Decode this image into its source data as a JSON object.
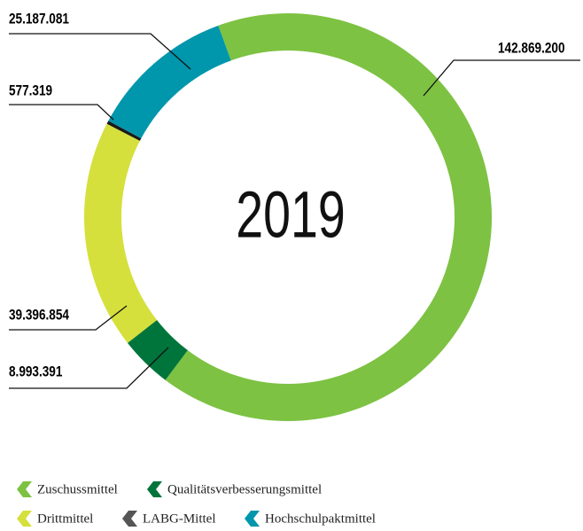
{
  "chart_data": {
    "type": "donut",
    "center_label": "2019",
    "categories": [
      "Zuschussmittel",
      "Qualitätsverbesserungsmittel",
      "Drittmittel",
      "LABG-Mittel",
      "Hochschulpaktmittel"
    ],
    "values": [
      142869200,
      8993391,
      39396854,
      577319,
      25187081
    ],
    "value_labels": [
      "142.869.200",
      "8.993.391",
      "39.396.854",
      "577.319",
      "25.187.081"
    ],
    "colors": [
      "#7dc242",
      "#00753b",
      "#d5e03c",
      "#1a1a1a",
      "#0096ab"
    ]
  }
}
